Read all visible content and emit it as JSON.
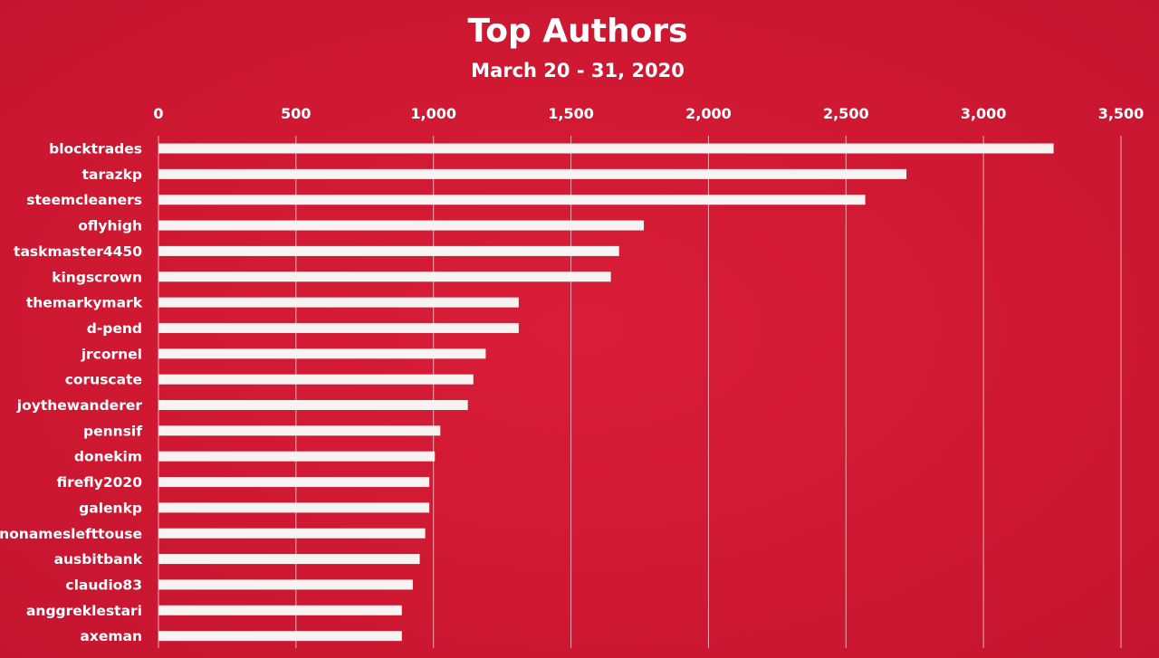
{
  "chart_data": {
    "type": "bar",
    "orientation": "horizontal",
    "title": "Top Authors",
    "subtitle": "March 20 - 31, 2020",
    "xlim": [
      0,
      3500
    ],
    "ticks": [
      0,
      500,
      1000,
      1500,
      2000,
      2500,
      3000,
      3500
    ],
    "tick_labels": [
      "0",
      "500",
      "1,000",
      "1,500",
      "2,000",
      "2,500",
      "3,000",
      "3,500"
    ],
    "tick_position": "top",
    "grid": true,
    "categories": [
      "blocktrades",
      "tarazkp",
      "steemcleaners",
      "oflyhigh",
      "taskmaster4450",
      "kingscrown",
      "themarkymark",
      "d-pend",
      "jrcornel",
      "coruscate",
      "joythewanderer",
      "pennsif",
      "donekim",
      "firefly2020",
      "galenkp",
      "nonameslefttouse",
      "ausbitbank",
      "claudio83",
      "anggreklestari",
      "axeman"
    ],
    "values": [
      3255,
      2720,
      2570,
      1765,
      1675,
      1645,
      1310,
      1310,
      1190,
      1145,
      1125,
      1025,
      1005,
      985,
      985,
      970,
      950,
      925,
      885,
      885
    ],
    "colors": {
      "background": "#d31a34",
      "bar": "#f7f3f3",
      "gridline": "#f2a9b3",
      "text": "#ffffff"
    }
  }
}
